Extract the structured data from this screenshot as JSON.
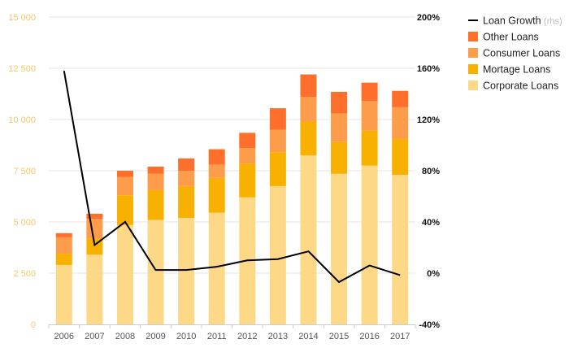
{
  "chart_data": {
    "type": "bar",
    "stacked": true,
    "categories": [
      "2006",
      "2007",
      "2008",
      "2009",
      "2010",
      "2011",
      "2012",
      "2013",
      "2014",
      "2015",
      "2016",
      "2017"
    ],
    "series": [
      {
        "name": "Corporate Loans",
        "color": "#fdd886",
        "values": [
          2900,
          3400,
          4850,
          5100,
          5200,
          5450,
          6200,
          6750,
          8250,
          7350,
          7750,
          7300
        ]
      },
      {
        "name": "Mortage Loans",
        "color": "#f8b100",
        "values": [
          550,
          800,
          1450,
          1450,
          1550,
          1700,
          1650,
          1650,
          1650,
          1550,
          1700,
          1750
        ]
      },
      {
        "name": "Consumer Loans",
        "color": "#fd9c4a",
        "values": [
          800,
          950,
          900,
          800,
          750,
          650,
          750,
          1100,
          1200,
          1400,
          1450,
          1550
        ]
      },
      {
        "name": "Other Loans",
        "color": "#fd6f2b",
        "values": [
          200,
          250,
          300,
          350,
          600,
          750,
          750,
          1050,
          1100,
          1050,
          900,
          800
        ]
      }
    ],
    "line_series": {
      "name": "Loan Growth",
      "name_suffix": "(rhs)",
      "color": "#000000",
      "axis": "right",
      "values": [
        158,
        22,
        40,
        2.5,
        2.5,
        5,
        10,
        11,
        17,
        -7,
        6,
        -1.5
      ]
    },
    "y_left": {
      "min": 0,
      "max": 15000,
      "ticks": [
        "0",
        "2 500",
        "5 000",
        "7 500",
        "10 000",
        "12 500",
        "15 000"
      ]
    },
    "y_right": {
      "min": -40,
      "max": 200,
      "ticks": [
        "-40%",
        "0%",
        "40%",
        "80%",
        "120%",
        "160%",
        "200%"
      ]
    },
    "grid": "horizontal",
    "legend_position": "right",
    "title": "",
    "xlabel": "",
    "ylabel": ""
  }
}
